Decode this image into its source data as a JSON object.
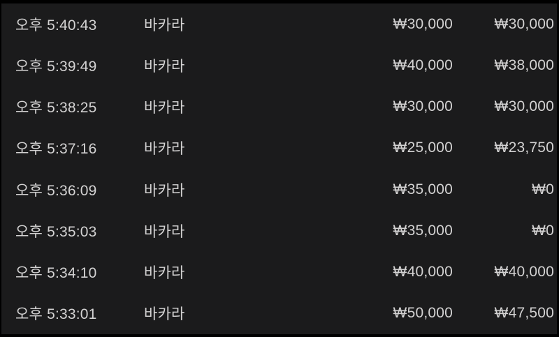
{
  "colors": {
    "panel_background": "#1b1b1c",
    "frame": "#000000",
    "text": "#d3d2d2"
  },
  "history": {
    "columns": [
      "time",
      "game",
      "bet",
      "payout"
    ],
    "rows": [
      {
        "time": "오후 5:40:43",
        "game": "바카라",
        "bet": "₩30,000",
        "payout": "₩30,000"
      },
      {
        "time": "오후 5:39:49",
        "game": "바카라",
        "bet": "₩40,000",
        "payout": "₩38,000"
      },
      {
        "time": "오후 5:38:25",
        "game": "바카라",
        "bet": "₩30,000",
        "payout": "₩30,000"
      },
      {
        "time": "오후 5:37:16",
        "game": "바카라",
        "bet": "₩25,000",
        "payout": "₩23,750"
      },
      {
        "time": "오후 5:36:09",
        "game": "바카라",
        "bet": "₩35,000",
        "payout": "₩0"
      },
      {
        "time": "오후 5:35:03",
        "game": "바카라",
        "bet": "₩35,000",
        "payout": "₩0"
      },
      {
        "time": "오후 5:34:10",
        "game": "바카라",
        "bet": "₩40,000",
        "payout": "₩40,000"
      },
      {
        "time": "오후 5:33:01",
        "game": "바카라",
        "bet": "₩50,000",
        "payout": "₩47,500"
      }
    ]
  }
}
